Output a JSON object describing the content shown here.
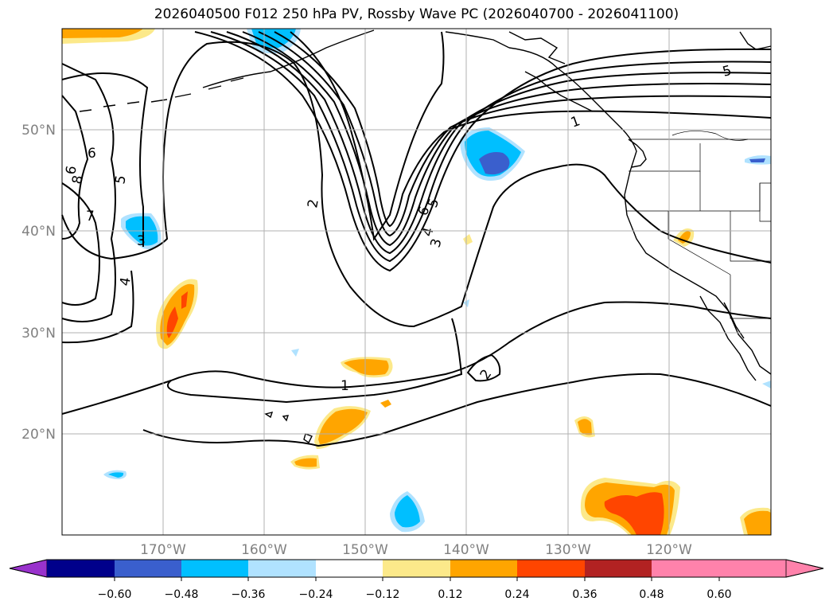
{
  "title": "2026040500 F012 250 hPa PV, Rossby Wave PC (2026040700 - 2026041100)",
  "map": {
    "lat_labels": [
      "50°N",
      "40°N",
      "30°N",
      "20°N"
    ],
    "lon_labels": [
      "170°W",
      "160°W",
      "150°W",
      "140°W",
      "130°W",
      "120°W"
    ],
    "contour_labels": [
      "1",
      "1",
      "2",
      "2",
      "3",
      "3",
      "4",
      "4",
      "5",
      "5",
      "5",
      "6",
      "6",
      "6",
      "7",
      "8"
    ]
  },
  "colorbar": {
    "ticks": [
      "−0.60",
      "−0.48",
      "−0.36",
      "−0.24",
      "−0.12",
      "0.12",
      "0.24",
      "0.36",
      "0.48",
      "0.60"
    ],
    "colors": [
      "#9932cc",
      "#00008b",
      "#3a5fcd",
      "#00bfff",
      "#b0e2ff",
      "#ffffff",
      "#fce98a",
      "#ffa500",
      "#ff4500",
      "#b22222",
      "#ff82ab",
      "#ff82ab"
    ]
  }
}
